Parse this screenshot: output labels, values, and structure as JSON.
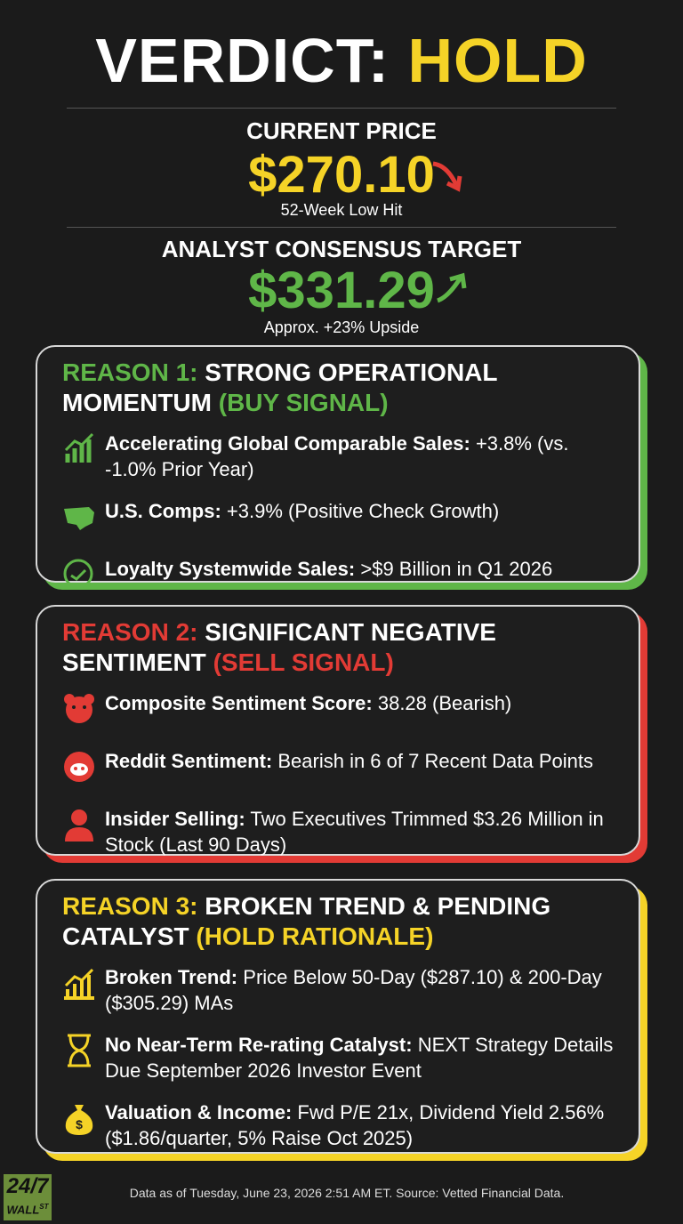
{
  "header": {
    "title_prefix": "VERDICT:",
    "title_verdict": "HOLD"
  },
  "price": {
    "label": "CURRENT PRICE",
    "value": "$270.10",
    "note": "52-Week Low Hit"
  },
  "target": {
    "label": "ANALYST CONSENSUS TARGET",
    "value": "$331.29",
    "note": "Approx. +23% Upside"
  },
  "reasons": [
    {
      "prefix": "REASON 1:",
      "title": "STRONG OPERATIONAL MOMENTUM",
      "signal": "(BUY SIGNAL)",
      "items": [
        {
          "label": "Accelerating Global Comparable Sales:",
          "text": "+3.8% (vs. -1.0% Prior Year)"
        },
        {
          "label": "U.S. Comps:",
          "text": "+3.9% (Positive Check Growth)"
        },
        {
          "label": "Loyalty Systemwide Sales:",
          "text": ">$9 Billion in Q1 2026"
        }
      ]
    },
    {
      "prefix": "REASON 2:",
      "title": "SIGNIFICANT NEGATIVE SENTIMENT",
      "signal": "(SELL SIGNAL)",
      "items": [
        {
          "label": "Composite Sentiment Score:",
          "text": "38.28 (Bearish)"
        },
        {
          "label": "Reddit Sentiment:",
          "text": "Bearish in 6 of 7 Recent Data Points"
        },
        {
          "label": "Insider Selling:",
          "text": "Two Executives Trimmed $3.26 Million in Stock (Last 90 Days)"
        }
      ]
    },
    {
      "prefix": "REASON 3:",
      "title": "BROKEN TREND & PENDING CATALYST",
      "signal": "(HOLD RATIONALE)",
      "items": [
        {
          "label": "Broken Trend:",
          "text": "Price Below 50-Day ($287.10) & 200-Day ($305.29) MAs"
        },
        {
          "label": "No Near-Term Re-rating Catalyst:",
          "text": "NEXT Strategy Details Due September 2026 Investor Event"
        },
        {
          "label": "Valuation & Income:",
          "text": "Fwd P/E 21x, Dividend Yield 2.56% ($1.86/quarter, 5% Raise Oct 2025)"
        }
      ]
    }
  ],
  "footer": {
    "logo_top": "24/7",
    "logo_bottom": "WALL",
    "logo_sup": "ST",
    "note": "Data as of Tuesday, June 23, 2026 2:51 AM ET. Source: Vetted Financial Data."
  }
}
